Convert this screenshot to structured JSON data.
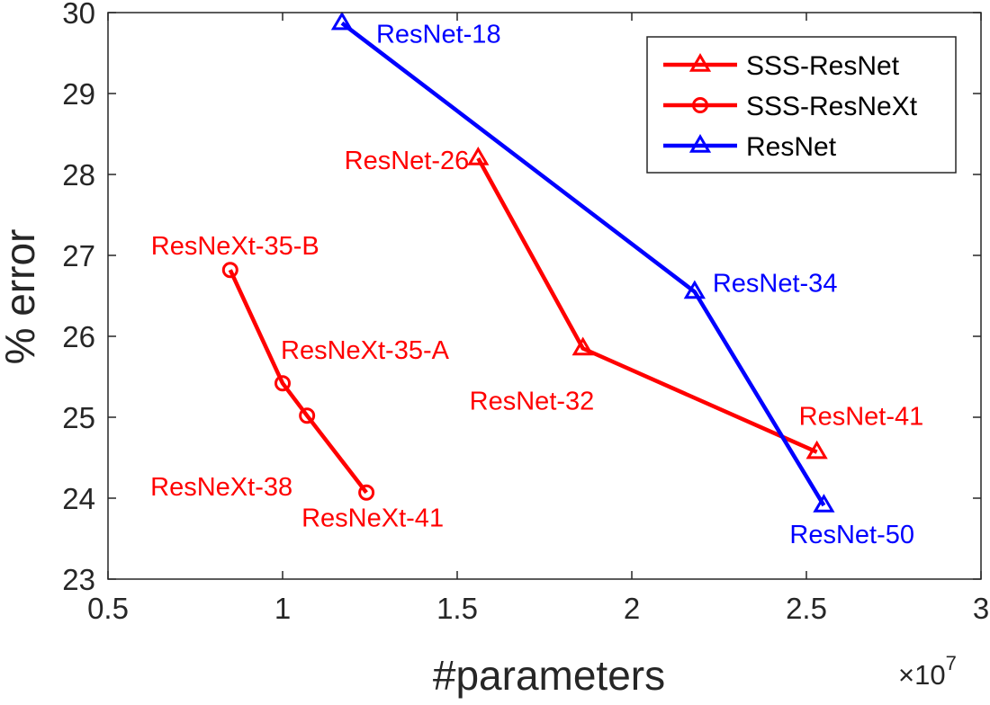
{
  "chart_data": {
    "type": "line",
    "xlabel": "#parameters",
    "ylabel": "% error",
    "x_multiplier": "×10",
    "x_multiplier_exp": "7",
    "xlim": [
      0.5,
      3
    ],
    "ylim": [
      23,
      30
    ],
    "x_ticks": [
      0.5,
      1,
      1.5,
      2,
      2.5,
      3
    ],
    "x_tick_labels": [
      "0.5",
      "1",
      "1.5",
      "2",
      "2.5",
      "3"
    ],
    "y_ticks": [
      23,
      24,
      25,
      26,
      27,
      28,
      29,
      30
    ],
    "y_tick_labels": [
      "23",
      "24",
      "25",
      "26",
      "27",
      "28",
      "29",
      "30"
    ],
    "grid": false,
    "legend_position": "top-right",
    "series": [
      {
        "name": "SSS-ResNet",
        "color": "#ff0000",
        "marker": "triangle",
        "x": [
          1.56,
          1.86,
          2.53
        ],
        "y": [
          28.2,
          25.85,
          24.57
        ],
        "labels": [
          "ResNet-26",
          "ResNet-32",
          "ResNet-41"
        ]
      },
      {
        "name": "SSS-ResNeXt",
        "color": "#ff0000",
        "marker": "circle",
        "x": [
          0.85,
          1.0,
          1.07,
          1.24
        ],
        "y": [
          26.82,
          25.42,
          25.02,
          24.07
        ],
        "labels": [
          "ResNeXt-35-B",
          "ResNeXt-35-A",
          "ResNeXt-38",
          "ResNeXt-41"
        ]
      },
      {
        "name": "ResNet",
        "color": "#0000ff",
        "marker": "triangle",
        "x": [
          1.17,
          2.18,
          2.55
        ],
        "y": [
          29.87,
          26.55,
          23.91
        ],
        "labels": [
          "ResNet-18",
          "ResNet-34",
          "ResNet-50"
        ]
      }
    ]
  }
}
